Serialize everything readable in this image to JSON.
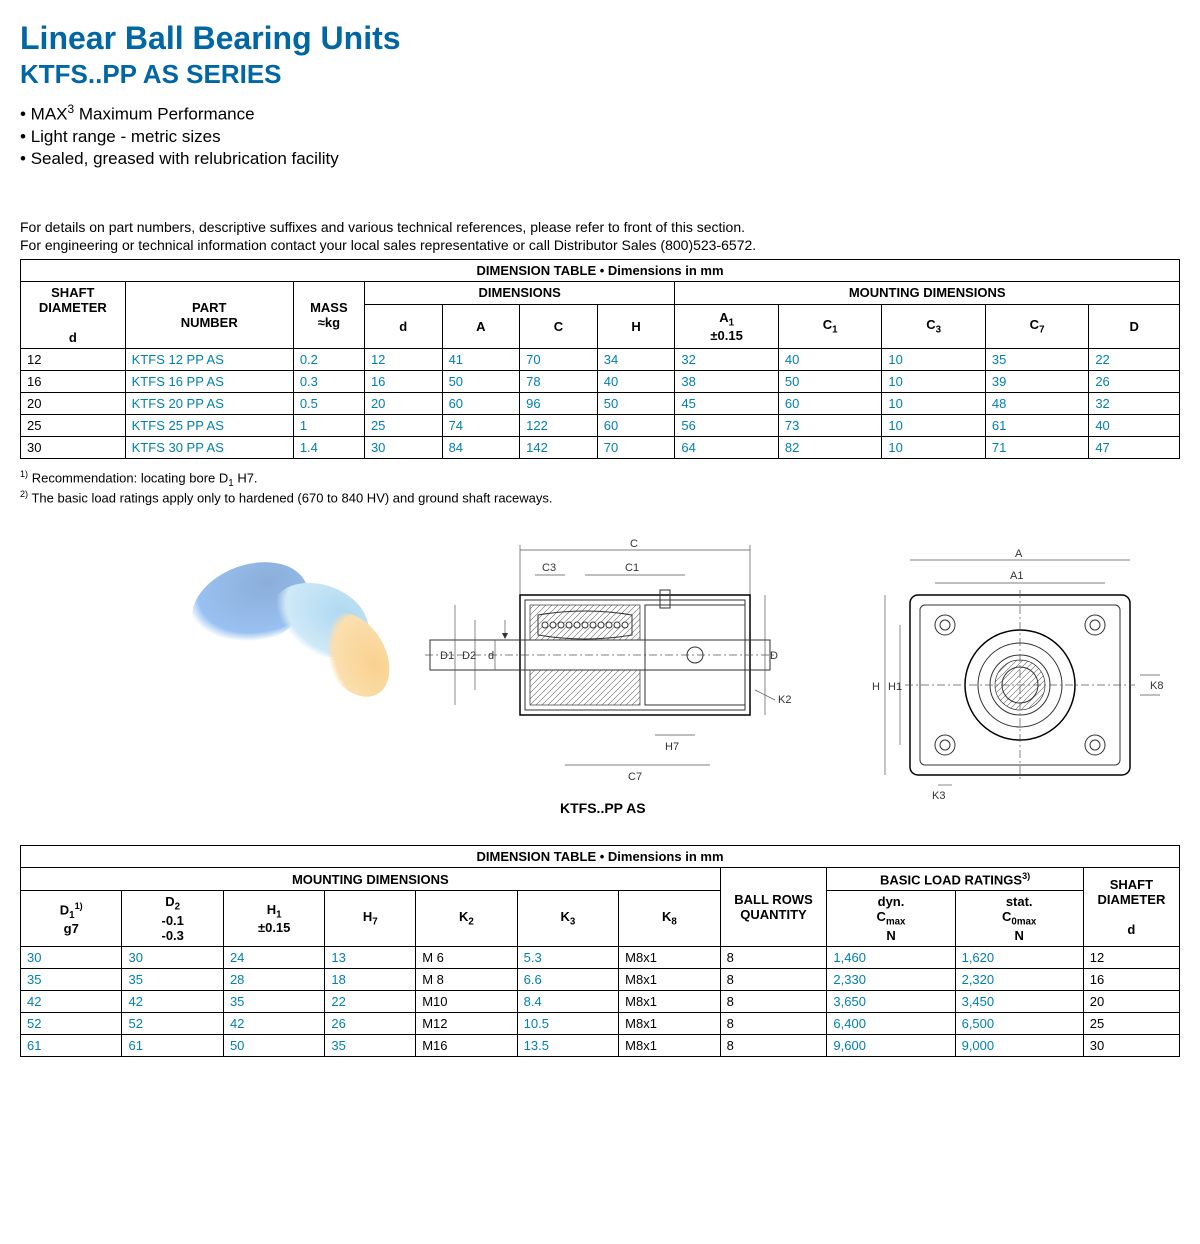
{
  "title": "Linear Ball Bearing Units",
  "subtitle": "KTFS..PP AS SERIES",
  "features": [
    "MAX³ Maximum Performance",
    "Light range - metric sizes",
    "Sealed, greased with relubrication facility"
  ],
  "detail1": "For details on part numbers, descriptive suffixes and various technical references, please refer to front of this section.",
  "detail2": "For engineering or technical information contact your local sales representative or call Distributor Sales (800)523-6572.",
  "table1": {
    "title": "DIMENSION TABLE • Dimensions in mm",
    "group_headers": [
      "SHAFT DIAMETER",
      "PART NUMBER",
      "MASS ≈kg",
      "DIMENSIONS",
      "MOUNTING DIMENSIONS"
    ],
    "sub_headers": [
      "d",
      "",
      "",
      "d",
      "A",
      "C",
      "H",
      "A₁ ±0.15",
      "C₁",
      "C₃",
      "C₇",
      "D"
    ],
    "rows": [
      [
        "12",
        "KTFS 12 PP AS",
        "0.2",
        "12",
        "41",
        "70",
        "34",
        "32",
        "40",
        "10",
        "35",
        "22"
      ],
      [
        "16",
        "KTFS 16 PP AS",
        "0.3",
        "16",
        "50",
        "78",
        "40",
        "38",
        "50",
        "10",
        "39",
        "26"
      ],
      [
        "20",
        "KTFS 20 PP AS",
        "0.5",
        "20",
        "60",
        "96",
        "50",
        "45",
        "60",
        "10",
        "48",
        "32"
      ],
      [
        "25",
        "KTFS 25 PP AS",
        "1",
        "25",
        "74",
        "122",
        "60",
        "56",
        "73",
        "10",
        "61",
        "40"
      ],
      [
        "30",
        "KTFS 30 PP AS",
        "1.4",
        "30",
        "84",
        "142",
        "70",
        "64",
        "82",
        "10",
        "71",
        "47"
      ]
    ],
    "col_widths": [
      "80",
      "130",
      "55",
      "60",
      "60",
      "60",
      "60",
      "80",
      "80",
      "80",
      "80",
      "70"
    ]
  },
  "notes": [
    "1) Recommendation: locating bore D₁ H7.",
    "2) The basic load ratings apply only to hardened (670 to 840 HV) and ground shaft raceways."
  ],
  "drawing_label": "KTFS..PP AS",
  "diagram_labels": {
    "C": "C",
    "C3": "C3",
    "C1": "C1",
    "D1": "D1",
    "D2": "D2",
    "d": "d",
    "D": "D",
    "K2": "K2",
    "H7": "H7",
    "C7": "C7",
    "A": "A",
    "A1": "A1",
    "H": "H",
    "H1": "H1",
    "K8": "K8",
    "K3": "K3"
  },
  "table2": {
    "title": "DIMENSION TABLE • Dimensions in mm",
    "group_headers": [
      "MOUNTING DIMENSIONS",
      "BALL ROWS QUANTITY",
      "BASIC LOAD RATINGS³⁾",
      "SHAFT DIAMETER"
    ],
    "sub_headers": [
      "D₁¹⁾ g7",
      "D₂ -0.1 -0.3",
      "H₁ ±0.15",
      "H₇",
      "K₂",
      "K₃",
      "K₈",
      "",
      "dyn. Cₘₐₓ N",
      "stat. C₀ₘₐₓ N",
      "d"
    ],
    "rows": [
      [
        "30",
        "30",
        "24",
        "13",
        "M 6",
        "5.3",
        "M8x1",
        "8",
        "1,460",
        "1,620",
        "12"
      ],
      [
        "35",
        "35",
        "28",
        "18",
        "M 8",
        "6.6",
        "M8x1",
        "8",
        "2,330",
        "2,320",
        "16"
      ],
      [
        "42",
        "42",
        "35",
        "22",
        "M10",
        "8.4",
        "M8x1",
        "8",
        "3,650",
        "3,450",
        "20"
      ],
      [
        "52",
        "52",
        "42",
        "26",
        "M12",
        "10.5",
        "M8x1",
        "8",
        "6,400",
        "6,500",
        "25"
      ],
      [
        "61",
        "61",
        "50",
        "35",
        "M16",
        "13.5",
        "M8x1",
        "8",
        "9,600",
        "9,000",
        "30"
      ]
    ],
    "col_widths": [
      "95",
      "95",
      "95",
      "85",
      "95",
      "95",
      "95",
      "100",
      "120",
      "120",
      "90"
    ]
  }
}
